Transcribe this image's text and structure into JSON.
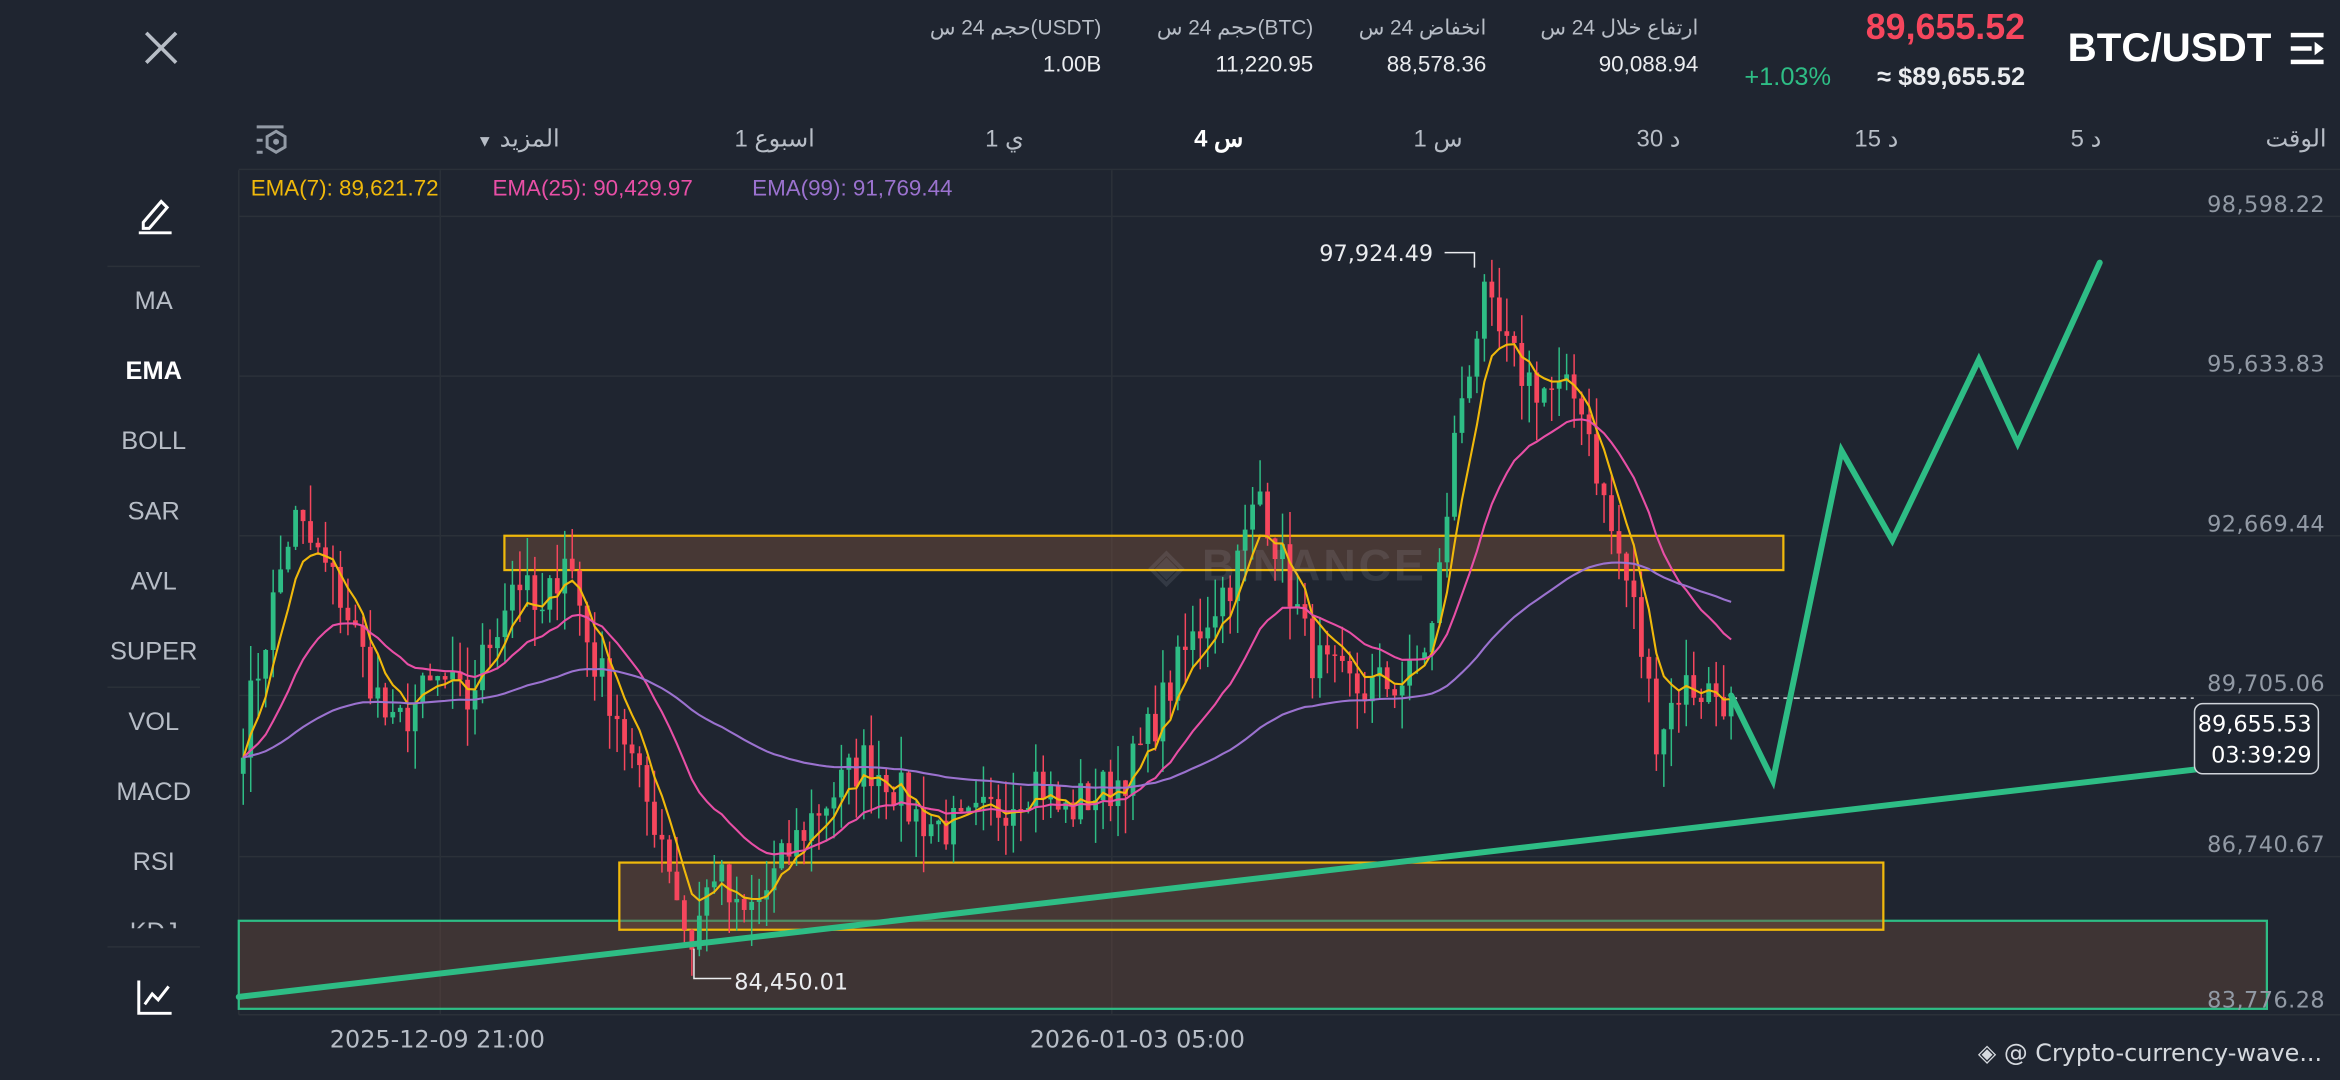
{
  "header": {
    "pair": "BTC/USDT",
    "last_price": "89,655.52",
    "usd_price": "≈ $89,655.52",
    "change_pct": "+1.03%",
    "stats": [
      {
        "label": "ارتفاع خلال 24 س",
        "value": "90,088.94"
      },
      {
        "label": "انخفاض 24 س",
        "value": "88,578.36"
      },
      {
        "label": "حجم 24 س(BTC)",
        "value": "11,220.95"
      },
      {
        "label": "حجم 24 س(USDT)",
        "value": "1.00B"
      }
    ]
  },
  "timeframes": {
    "label": "الوقت",
    "items": [
      "5 د",
      "15 د",
      "30 د",
      "1 س",
      "4 س",
      "1 ي",
      "1 اسبوع",
      "المزيد"
    ],
    "active": "4 س"
  },
  "tools": {
    "items": [
      "MA",
      "EMA",
      "BOLL",
      "SAR",
      "AVL",
      "SUPER",
      "VOL",
      "MACD",
      "RSI",
      "KDJ"
    ],
    "active": "EMA"
  },
  "ema_legend": {
    "ema7": "EMA(7): 89,621.72",
    "ema25": "EMA(25): 90,429.97",
    "ema99": "EMA(99): 91,769.44"
  },
  "price_axis": [
    "98,598.22",
    "95,633.83",
    "92,669.44",
    "89,705.06",
    "86,740.67",
    "83,776.28"
  ],
  "current_price_tag": {
    "price": "89,655.53",
    "countdown": "03:39:29"
  },
  "annotations": {
    "high": "97,924.49",
    "low": "84,450.01"
  },
  "time_axis": [
    "2025-12-09 21:00",
    "2026-01-03 05:00"
  ],
  "watermark": "BINANCE",
  "footer": {
    "credit": "@ Crypto-currency-wave..."
  },
  "colors": {
    "background": "#1f2530",
    "up": "#2ebd85",
    "down": "#f6465d",
    "ema7": "#f0b90b",
    "ema25": "#e84fa6",
    "ema99": "#9b72cf",
    "drawing_green": "#2ebd85",
    "drawing_yellow": "#f0b90b"
  },
  "chart_data": {
    "type": "candlestick",
    "approx_close_path": [
      89000,
      91000,
      93000,
      92300,
      91500,
      90200,
      89000,
      89600,
      90000,
      89500,
      90800,
      92000,
      91000,
      92500,
      90500,
      89500,
      88000,
      87000,
      85000,
      86500,
      85500,
      86000,
      86800,
      87500,
      88000,
      88500,
      88200,
      87500,
      87300,
      87200,
      87500,
      87800,
      88200,
      87500,
      87800,
      88000,
      88500,
      89500,
      90500,
      91300,
      92000,
      93500,
      92000,
      90500,
      90000,
      89800,
      89900,
      90000,
      91000,
      95000,
      97000,
      96000,
      95500,
      95300,
      95200,
      93000,
      91500,
      89000,
      89900,
      89800,
      89655
    ],
    "high": 97924.49,
    "low": 84450.01,
    "y_axis_range": [
      83776.28,
      98598.22
    ]
  }
}
